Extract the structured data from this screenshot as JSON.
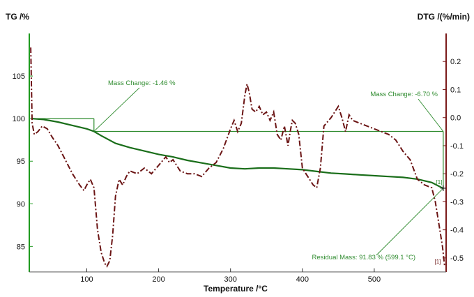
{
  "chart_data": {
    "type": "line",
    "xlabel": "Temperature /°C",
    "ylabel_left": "TG /%",
    "ylabel_right": "DTG /(%/min)",
    "xlim": [
      20,
      600
    ],
    "ylim_left": [
      82,
      110
    ],
    "ylim_right": [
      -0.55,
      0.3
    ],
    "x_ticks": [
      "100",
      "200",
      "300",
      "400",
      "500"
    ],
    "x_tick_values": [
      100,
      200,
      300,
      400,
      500
    ],
    "y_left_ticks": [
      "105",
      "100",
      "95",
      "90",
      "85"
    ],
    "y_left_tick_values": [
      105,
      100,
      95,
      90,
      85
    ],
    "y_right_ticks": [
      "0.2",
      "0.1",
      "0.0",
      "-0.1",
      "-0.2",
      "-0.3",
      "-0.4",
      "-0.5"
    ],
    "y_right_tick_values": [
      0.2,
      0.1,
      0.0,
      -0.1,
      -0.2,
      -0.3,
      -0.4,
      -0.5
    ],
    "grid": false,
    "colors": {
      "tg": "#1a6e1a",
      "dtg": "#6b1414",
      "axis": "#1f9a1f",
      "right_axis": "#7a1a1a",
      "annotation": "#2e8b2e"
    },
    "series": [
      {
        "axis": "left",
        "style": "solid",
        "x": [
          24,
          40,
          60,
          80,
          100,
          110,
          120,
          140,
          160,
          180,
          200,
          220,
          240,
          260,
          280,
          300,
          320,
          340,
          360,
          380,
          400,
          420,
          440,
          460,
          480,
          500,
          520,
          540,
          560,
          580,
          596
        ],
        "y": [
          100.0,
          99.9,
          99.6,
          99.2,
          98.8,
          98.5,
          98.0,
          97.1,
          96.6,
          96.2,
          95.8,
          95.5,
          95.1,
          94.8,
          94.5,
          94.2,
          94.1,
          94.2,
          94.2,
          94.1,
          94.0,
          93.8,
          93.6,
          93.5,
          93.4,
          93.3,
          93.2,
          93.1,
          92.9,
          92.5,
          91.8
        ]
      },
      {
        "axis": "right",
        "style": "dash-dot",
        "x": [
          22,
          24,
          27,
          32,
          38,
          45,
          52,
          60,
          70,
          80,
          90,
          96,
          100,
          105,
          110,
          115,
          120,
          125,
          128,
          132,
          136,
          140,
          145,
          150,
          155,
          160,
          170,
          180,
          190,
          200,
          210,
          215,
          220,
          230,
          240,
          250,
          260,
          270,
          280,
          290,
          300,
          305,
          310,
          315,
          320,
          323,
          326,
          330,
          335,
          340,
          345,
          350,
          355,
          360,
          365,
          370,
          375,
          380,
          383,
          386,
          390,
          395,
          400,
          405,
          410,
          415,
          420,
          425,
          430,
          440,
          450,
          455,
          460,
          465,
          470,
          480,
          490,
          500,
          510,
          520,
          530,
          540,
          550,
          560,
          570,
          580,
          585,
          590,
          595,
          598
        ],
        "y": [
          0.25,
          -0.02,
          -0.06,
          -0.05,
          -0.03,
          -0.04,
          -0.07,
          -0.1,
          -0.15,
          -0.2,
          -0.24,
          -0.26,
          -0.24,
          -0.22,
          -0.25,
          -0.4,
          -0.48,
          -0.52,
          -0.53,
          -0.51,
          -0.42,
          -0.28,
          -0.22,
          -0.24,
          -0.21,
          -0.19,
          -0.2,
          -0.18,
          -0.2,
          -0.17,
          -0.14,
          -0.16,
          -0.15,
          -0.19,
          -0.2,
          -0.2,
          -0.21,
          -0.18,
          -0.16,
          -0.11,
          -0.04,
          -0.01,
          -0.05,
          -0.02,
          0.08,
          0.12,
          0.09,
          0.03,
          0.02,
          0.04,
          0.01,
          0.02,
          -0.01,
          0.02,
          -0.06,
          -0.08,
          -0.03,
          -0.1,
          -0.05,
          -0.01,
          -0.02,
          -0.06,
          -0.18,
          -0.2,
          -0.22,
          -0.24,
          -0.25,
          -0.18,
          -0.03,
          0.0,
          0.04,
          0.0,
          -0.05,
          0.01,
          -0.01,
          -0.02,
          -0.03,
          -0.04,
          -0.05,
          -0.06,
          -0.08,
          -0.12,
          -0.15,
          -0.22,
          -0.24,
          -0.25,
          -0.3,
          -0.38,
          -0.46,
          -0.53
        ]
      }
    ],
    "annotations": [
      {
        "text": "Mass Change: -1.46 %",
        "at_x": 110,
        "at_y": 98.5
      },
      {
        "text": "Mass Change: -6.70 %",
        "at_x": 596,
        "at_y": 98.5
      },
      {
        "text": "Residual Mass: 91.83 % (599.1 °C)",
        "at_x": 596,
        "at_y": 91.83
      }
    ],
    "reference_lines": [
      {
        "y": 100.0,
        "x_from": 24,
        "x_to": 110
      },
      {
        "y": 98.5,
        "x_from": 110,
        "x_to": 596
      }
    ],
    "end_markers": [
      "[1]",
      "[1]"
    ]
  }
}
